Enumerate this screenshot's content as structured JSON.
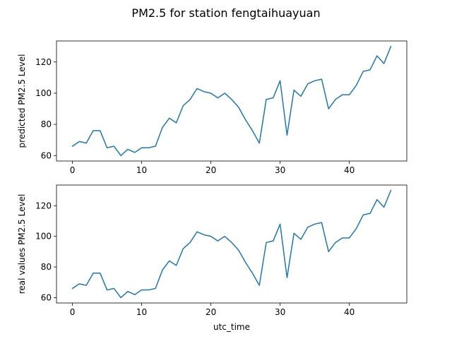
{
  "title": "PM2.5 for station fengtaihuayuan",
  "chart_data": [
    {
      "type": "line",
      "ylabel": "predicted PM2.5 Level",
      "xlabel": "",
      "xlim": [
        -2.3,
        48.3
      ],
      "ylim": [
        56.5,
        133.5
      ],
      "xticks": [
        0,
        10,
        20,
        30,
        40
      ],
      "yticks": [
        60,
        80,
        100,
        120
      ],
      "grid": false,
      "color": "#1f77b4",
      "x": [
        0,
        1,
        2,
        3,
        4,
        5,
        6,
        7,
        8,
        9,
        10,
        11,
        12,
        13,
        14,
        15,
        16,
        17,
        18,
        19,
        20,
        21,
        22,
        23,
        24,
        25,
        26,
        27,
        28,
        29,
        30,
        31,
        32,
        33,
        34,
        35,
        36,
        37,
        38,
        39,
        40,
        41,
        42,
        43,
        44,
        45,
        46
      ],
      "values": [
        66,
        69,
        68,
        76,
        76,
        65,
        66,
        60,
        64,
        62,
        65,
        65,
        66,
        78,
        84,
        81,
        92,
        96,
        103,
        101,
        100,
        97,
        100,
        96,
        91,
        83,
        76,
        68,
        96,
        97,
        108,
        73,
        102,
        98,
        106,
        108,
        109,
        90,
        96,
        99,
        99,
        105,
        114,
        115,
        124,
        119,
        130
      ]
    },
    {
      "type": "line",
      "ylabel": "real values PM2.5 Level",
      "xlabel": "utc_time",
      "xlim": [
        -2.3,
        48.3
      ],
      "ylim": [
        56.5,
        133.5
      ],
      "xticks": [
        0,
        10,
        20,
        30,
        40
      ],
      "yticks": [
        60,
        80,
        100,
        120
      ],
      "grid": false,
      "color": "#1f77b4",
      "x": [
        0,
        1,
        2,
        3,
        4,
        5,
        6,
        7,
        8,
        9,
        10,
        11,
        12,
        13,
        14,
        15,
        16,
        17,
        18,
        19,
        20,
        21,
        22,
        23,
        24,
        25,
        26,
        27,
        28,
        29,
        30,
        31,
        32,
        33,
        34,
        35,
        36,
        37,
        38,
        39,
        40,
        41,
        42,
        43,
        44,
        45,
        46
      ],
      "values": [
        66,
        69,
        68,
        76,
        76,
        65,
        66,
        60,
        64,
        62,
        65,
        65,
        66,
        78,
        84,
        81,
        92,
        96,
        103,
        101,
        100,
        97,
        100,
        96,
        91,
        83,
        76,
        68,
        96,
        97,
        108,
        73,
        102,
        98,
        106,
        108,
        109,
        90,
        96,
        99,
        99,
        105,
        114,
        115,
        124,
        119,
        130
      ]
    }
  ]
}
